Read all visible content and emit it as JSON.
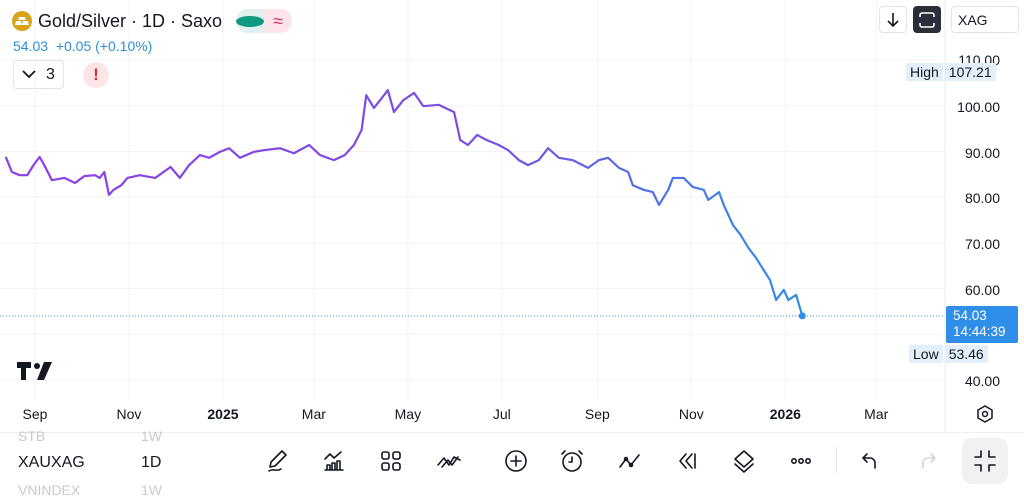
{
  "header": {
    "title": "Gold/Silver · 1D · Saxo",
    "price": "54.03",
    "change": "+0.05 (+0.10%)",
    "indicator_count": "3",
    "warning": "!",
    "market_status_color": "#119a83"
  },
  "toolbar_top": {
    "symbol_input": "XAG"
  },
  "price_axis": {
    "labels": [
      "110.00",
      "100.00",
      "90.00",
      "80.00",
      "70.00",
      "60.00",
      "40.00"
    ],
    "high_label": "High",
    "high_value": "107.21",
    "low_label": "Low",
    "low_value": "53.46",
    "current_price": "54.03",
    "countdown": "14:44:39"
  },
  "time_axis": {
    "labels": [
      "Sep",
      "Nov",
      "2025",
      "Mar",
      "May",
      "Jul",
      "Sep",
      "Nov",
      "2026",
      "Mar"
    ]
  },
  "watchlist": {
    "prev": {
      "symbol": "STB",
      "interval": "1W"
    },
    "current": {
      "symbol": "XAUXAG",
      "interval": "1D"
    },
    "next": {
      "symbol": "VNINDEX",
      "interval": "1W"
    }
  },
  "bottom_toolbar": [
    "pencil-icon",
    "indicators-icon",
    "grid-icon",
    "patterns-icon",
    "plus-circle-icon",
    "alarm-icon",
    "line-tool-icon",
    "replay-icon",
    "layers-icon",
    "more-icon",
    "undo-icon",
    "redo-icon",
    "collapse-icon"
  ],
  "colors": {
    "line_start": "#8e3ee6",
    "line_end": "#2f8fe8",
    "accent": "#2f8fe8"
  },
  "chart_data": {
    "type": "line",
    "ylim": [
      40,
      110
    ],
    "yticks": [
      40,
      60,
      70,
      80,
      90,
      100,
      110
    ],
    "grid": true,
    "x": [
      "2024-08-13",
      "2024-08-17",
      "2024-08-22",
      "2024-08-27",
      "2024-08-31",
      "2024-09-04",
      "2024-09-07",
      "2024-09-12",
      "2024-09-20",
      "2024-09-27",
      "2024-10-03",
      "2024-10-10",
      "2024-10-13",
      "2024-10-16",
      "2024-10-19",
      "2024-10-22",
      "2024-10-27",
      "2024-10-31",
      "2024-11-08",
      "2024-11-18",
      "2024-11-28",
      "2024-12-04",
      "2024-12-10",
      "2024-12-17",
      "2024-12-23",
      "2024-12-30",
      "2025-01-05",
      "2025-01-12",
      "2025-01-21",
      "2025-01-28",
      "2025-02-07",
      "2025-02-16",
      "2025-02-26",
      "2025-03-05",
      "2025-03-14",
      "2025-03-21",
      "2025-03-27",
      "2025-04-01",
      "2025-04-04",
      "2025-04-09",
      "2025-04-13",
      "2025-04-18",
      "2025-04-22",
      "2025-04-28",
      "2025-05-05",
      "2025-05-11",
      "2025-05-21",
      "2025-05-31",
      "2025-06-04",
      "2025-06-09",
      "2025-06-15",
      "2025-06-21",
      "2025-06-29",
      "2025-07-05",
      "2025-07-12",
      "2025-07-18",
      "2025-07-25",
      "2025-07-31",
      "2025-08-07",
      "2025-08-16",
      "2025-08-26",
      "2025-09-02",
      "2025-09-08",
      "2025-09-15",
      "2025-09-21",
      "2025-09-24",
      "2025-10-01",
      "2025-10-07",
      "2025-10-11",
      "2025-10-17",
      "2025-10-20",
      "2025-10-27",
      "2025-11-02",
      "2025-11-09",
      "2025-11-12",
      "2025-11-19",
      "2025-11-22",
      "2025-11-28",
      "2025-12-03",
      "2025-12-08",
      "2025-12-13",
      "2025-12-18",
      "2025-12-22",
      "2025-12-26",
      "2025-12-31",
      "2026-01-03",
      "2026-01-08",
      "2026-01-12"
    ],
    "y": [
      88.8,
      85.5,
      84.8,
      84.8,
      87.0,
      88.8,
      87.0,
      83.7,
      84.2,
      83.1,
      84.6,
      84.8,
      84.2,
      85.5,
      80.5,
      81.6,
      82.6,
      84.2,
      84.8,
      84.2,
      86.6,
      84.2,
      87.0,
      89.2,
      88.6,
      89.9,
      90.7,
      88.6,
      89.9,
      90.3,
      90.7,
      89.6,
      91.4,
      89.2,
      88.1,
      89.2,
      91.4,
      94.7,
      102.3,
      99.5,
      101.2,
      103.4,
      98.6,
      101.2,
      102.8,
      99.9,
      100.2,
      98.6,
      92.5,
      91.4,
      93.6,
      92.5,
      91.4,
      90.3,
      88.1,
      87.0,
      88.1,
      90.7,
      88.6,
      88.1,
      86.4,
      88.1,
      88.6,
      86.4,
      85.5,
      82.6,
      81.6,
      81.1,
      78.3,
      81.6,
      84.2,
      84.2,
      82.2,
      81.6,
      79.4,
      81.1,
      78.3,
      73.9,
      71.7,
      68.9,
      66.7,
      64.0,
      61.9,
      57.5,
      59.7,
      57.5,
      58.6,
      54.03
    ]
  }
}
